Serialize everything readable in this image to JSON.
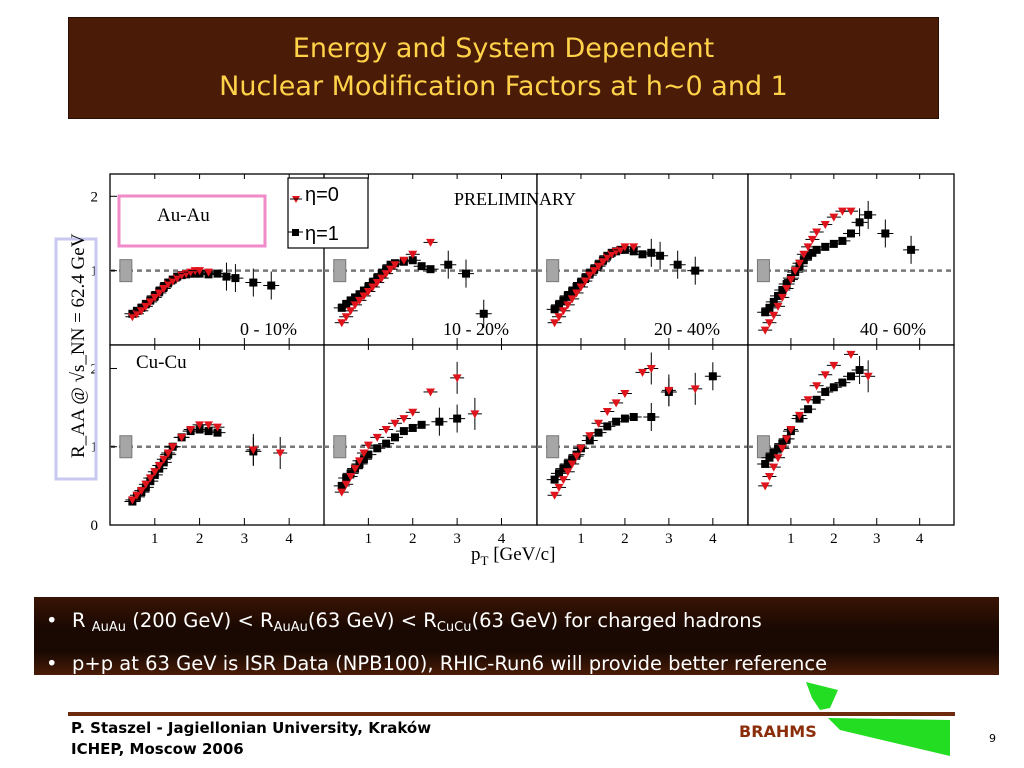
{
  "title": {
    "line1": "Energy and System Dependent",
    "line2": "Nuclear Modification Factors at h~0 and 1"
  },
  "bullets": {
    "b1": {
      "p1": "R ",
      "s1": "AuAu",
      "p2": " (200 GeV) < R",
      "s2": "AuAu",
      "p3": "(63 GeV) <  R",
      "s3": "CuCu",
      "p4": "(63 GeV) for charged hadrons"
    },
    "b2": "p+p at 63 GeV is ISR Data (NPB100), RHIC-Run6 will provide better reference"
  },
  "footer": {
    "author": "P. Staszel - Jagiellonian University, Kraków",
    "conference": "ICHEP, Moscow 2006",
    "logo_text": "BRAHMS",
    "page": "9"
  },
  "colors": {
    "title_bg": "#4a1c07",
    "title_text": "#ffd24a",
    "eta0": "#e0141c",
    "eta1": "#000000",
    "auau_box": "#f08ac8",
    "ylabel_box": "#c8c8f0",
    "logo_green": "#22dd22"
  },
  "chart_data": {
    "type": "scatter",
    "title": "",
    "preliminary": "PRELIMINARY",
    "xlabel": "p",
    "xlabel_sub": "T",
    "xlabel_unit": " [GeV/c]",
    "ylabel": "R_AA @ √s_NN = 62.4 GeV",
    "xlim": [
      0,
      4.8
    ],
    "ylim": [
      0,
      2.3
    ],
    "xticks": [
      1,
      2,
      3,
      4
    ],
    "yticks": [
      0,
      1,
      2
    ],
    "legend": [
      {
        "name": "η=0",
        "marker": "triangle-down",
        "color": "#e0141c"
      },
      {
        "name": "η=1",
        "marker": "square",
        "color": "#000000"
      }
    ],
    "rows": [
      {
        "system": "Au-Au",
        "ylim": [
          0.0,
          2.3
        ]
      },
      {
        "system": "Cu-Cu",
        "ylim": [
          0.0,
          2.3
        ]
      }
    ],
    "panels": [
      {
        "row": 0,
        "centrality": "0 - 10%",
        "eta0": [
          [
            0.5,
            0.38
          ],
          [
            0.6,
            0.42
          ],
          [
            0.7,
            0.46
          ],
          [
            0.8,
            0.52
          ],
          [
            0.9,
            0.58
          ],
          [
            1.0,
            0.64
          ],
          [
            1.1,
            0.7
          ],
          [
            1.2,
            0.76
          ],
          [
            1.3,
            0.82
          ],
          [
            1.4,
            0.86
          ],
          [
            1.5,
            0.9
          ],
          [
            1.6,
            0.94
          ],
          [
            1.7,
            0.96
          ],
          [
            1.8,
            0.98
          ],
          [
            1.9,
            1.0
          ],
          [
            2.0,
            1.0
          ],
          [
            2.2,
            0.98
          ]
        ],
        "eta1": [
          [
            0.5,
            0.42
          ],
          [
            0.6,
            0.46
          ],
          [
            0.7,
            0.5
          ],
          [
            0.8,
            0.55
          ],
          [
            0.9,
            0.6
          ],
          [
            1.0,
            0.66
          ],
          [
            1.1,
            0.72
          ],
          [
            1.2,
            0.78
          ],
          [
            1.3,
            0.84
          ],
          [
            1.4,
            0.88
          ],
          [
            1.5,
            0.92
          ],
          [
            1.6,
            0.94
          ],
          [
            1.7,
            0.95
          ],
          [
            1.8,
            0.96
          ],
          [
            1.9,
            0.96
          ],
          [
            2.0,
            0.96
          ],
          [
            2.2,
            0.95
          ],
          [
            2.4,
            0.96
          ],
          [
            2.6,
            0.92
          ],
          [
            2.8,
            0.9
          ],
          [
            3.2,
            0.84
          ],
          [
            3.6,
            0.8
          ]
        ],
        "note": "no η=0 points beyond 2.2 GeV/c"
      },
      {
        "row": 0,
        "centrality": "10 - 20%",
        "eta0": [
          [
            0.4,
            0.3
          ],
          [
            0.5,
            0.38
          ],
          [
            0.6,
            0.46
          ],
          [
            0.7,
            0.54
          ],
          [
            0.8,
            0.6
          ],
          [
            0.9,
            0.66
          ],
          [
            1.0,
            0.72
          ],
          [
            1.1,
            0.78
          ],
          [
            1.2,
            0.84
          ],
          [
            1.3,
            0.9
          ],
          [
            1.4,
            0.96
          ],
          [
            1.5,
            1.02
          ],
          [
            1.6,
            1.08
          ],
          [
            1.8,
            1.14
          ],
          [
            2.0,
            1.22
          ],
          [
            2.4,
            1.38
          ]
        ],
        "eta1": [
          [
            0.4,
            0.5
          ],
          [
            0.5,
            0.55
          ],
          [
            0.6,
            0.6
          ],
          [
            0.7,
            0.64
          ],
          [
            0.8,
            0.68
          ],
          [
            0.9,
            0.73
          ],
          [
            1.0,
            0.78
          ],
          [
            1.1,
            0.84
          ],
          [
            1.2,
            0.9
          ],
          [
            1.3,
            0.96
          ],
          [
            1.4,
            1.02
          ],
          [
            1.5,
            1.08
          ],
          [
            1.6,
            1.1
          ],
          [
            1.8,
            1.12
          ],
          [
            2.0,
            1.14
          ],
          [
            2.2,
            1.06
          ],
          [
            2.4,
            1.02
          ],
          [
            2.8,
            1.08
          ],
          [
            3.2,
            0.96
          ],
          [
            3.6,
            0.42
          ]
        ]
      },
      {
        "row": 0,
        "centrality": "20 - 40%",
        "eta0": [
          [
            0.4,
            0.3
          ],
          [
            0.5,
            0.38
          ],
          [
            0.6,
            0.46
          ],
          [
            0.7,
            0.54
          ],
          [
            0.8,
            0.62
          ],
          [
            0.9,
            0.7
          ],
          [
            1.0,
            0.78
          ],
          [
            1.1,
            0.86
          ],
          [
            1.2,
            0.94
          ],
          [
            1.3,
            1.0
          ],
          [
            1.4,
            1.06
          ],
          [
            1.5,
            1.12
          ],
          [
            1.6,
            1.18
          ],
          [
            1.7,
            1.22
          ],
          [
            1.8,
            1.26
          ],
          [
            1.9,
            1.28
          ],
          [
            2.0,
            1.32
          ],
          [
            2.2,
            1.32
          ]
        ],
        "eta1": [
          [
            0.4,
            0.48
          ],
          [
            0.5,
            0.54
          ],
          [
            0.6,
            0.6
          ],
          [
            0.7,
            0.66
          ],
          [
            0.8,
            0.72
          ],
          [
            0.9,
            0.78
          ],
          [
            1.0,
            0.84
          ],
          [
            1.1,
            0.9
          ],
          [
            1.2,
            0.96
          ],
          [
            1.3,
            1.02
          ],
          [
            1.4,
            1.08
          ],
          [
            1.5,
            1.14
          ],
          [
            1.6,
            1.2
          ],
          [
            1.7,
            1.24
          ],
          [
            1.8,
            1.26
          ],
          [
            1.9,
            1.28
          ],
          [
            2.0,
            1.28
          ],
          [
            2.2,
            1.26
          ],
          [
            2.4,
            1.22
          ],
          [
            2.6,
            1.24
          ],
          [
            2.8,
            1.2
          ],
          [
            3.2,
            1.08
          ],
          [
            3.6,
            1.0
          ]
        ]
      },
      {
        "row": 0,
        "centrality": "40 - 60%",
        "eta0": [
          [
            0.4,
            0.2
          ],
          [
            0.5,
            0.3
          ],
          [
            0.6,
            0.4
          ],
          [
            0.7,
            0.52
          ],
          [
            0.8,
            0.64
          ],
          [
            0.9,
            0.76
          ],
          [
            1.0,
            0.88
          ],
          [
            1.1,
            1.0
          ],
          [
            1.2,
            1.1
          ],
          [
            1.3,
            1.22
          ],
          [
            1.4,
            1.32
          ],
          [
            1.5,
            1.42
          ],
          [
            1.6,
            1.52
          ],
          [
            1.8,
            1.62
          ],
          [
            2.0,
            1.72
          ],
          [
            2.2,
            1.8
          ],
          [
            2.4,
            1.8
          ]
        ],
        "eta1": [
          [
            0.4,
            0.44
          ],
          [
            0.5,
            0.5
          ],
          [
            0.6,
            0.58
          ],
          [
            0.7,
            0.66
          ],
          [
            0.8,
            0.74
          ],
          [
            0.9,
            0.82
          ],
          [
            1.0,
            0.9
          ],
          [
            1.1,
            0.98
          ],
          [
            1.2,
            1.06
          ],
          [
            1.3,
            1.14
          ],
          [
            1.4,
            1.2
          ],
          [
            1.5,
            1.24
          ],
          [
            1.6,
            1.28
          ],
          [
            1.8,
            1.32
          ],
          [
            2.0,
            1.36
          ],
          [
            2.2,
            1.4
          ],
          [
            2.4,
            1.5
          ],
          [
            2.6,
            1.65
          ],
          [
            2.8,
            1.75
          ],
          [
            3.2,
            1.5
          ],
          [
            3.8,
            1.28
          ]
        ]
      },
      {
        "row": 1,
        "centrality": "",
        "eta0": [
          [
            0.5,
            0.32
          ],
          [
            0.6,
            0.38
          ],
          [
            0.7,
            0.44
          ],
          [
            0.8,
            0.52
          ],
          [
            0.9,
            0.6
          ],
          [
            1.0,
            0.68
          ],
          [
            1.1,
            0.76
          ],
          [
            1.2,
            0.84
          ],
          [
            1.3,
            0.92
          ],
          [
            1.4,
            1.0
          ],
          [
            1.6,
            1.12
          ],
          [
            1.8,
            1.22
          ],
          [
            2.0,
            1.28
          ],
          [
            2.2,
            1.28
          ],
          [
            2.4,
            1.25
          ],
          [
            3.2,
            0.96
          ],
          [
            3.8,
            0.92
          ]
        ],
        "eta1": [
          [
            0.5,
            0.3
          ],
          [
            0.6,
            0.36
          ],
          [
            0.7,
            0.42
          ],
          [
            0.8,
            0.48
          ],
          [
            0.9,
            0.56
          ],
          [
            1.0,
            0.64
          ],
          [
            1.1,
            0.72
          ],
          [
            1.2,
            0.8
          ],
          [
            1.3,
            0.9
          ],
          [
            1.4,
            1.0
          ],
          [
            1.6,
            1.12
          ],
          [
            1.8,
            1.2
          ],
          [
            2.0,
            1.22
          ],
          [
            2.2,
            1.2
          ],
          [
            2.4,
            1.18
          ],
          [
            3.2,
            0.94
          ]
        ]
      },
      {
        "row": 1,
        "centrality": "",
        "eta0": [
          [
            0.4,
            0.42
          ],
          [
            0.5,
            0.52
          ],
          [
            0.6,
            0.62
          ],
          [
            0.7,
            0.72
          ],
          [
            0.8,
            0.82
          ],
          [
            0.9,
            0.92
          ],
          [
            1.0,
            1.02
          ],
          [
            1.2,
            1.12
          ],
          [
            1.4,
            1.22
          ],
          [
            1.6,
            1.3
          ],
          [
            1.8,
            1.36
          ],
          [
            2.0,
            1.44
          ],
          [
            2.4,
            1.7
          ],
          [
            3.0,
            1.88
          ],
          [
            3.4,
            1.42
          ]
        ],
        "eta1": [
          [
            0.4,
            0.5
          ],
          [
            0.5,
            0.6
          ],
          [
            0.6,
            0.66
          ],
          [
            0.7,
            0.72
          ],
          [
            0.8,
            0.78
          ],
          [
            0.9,
            0.84
          ],
          [
            1.0,
            0.9
          ],
          [
            1.2,
            0.98
          ],
          [
            1.4,
            1.04
          ],
          [
            1.6,
            1.12
          ],
          [
            1.8,
            1.2
          ],
          [
            2.0,
            1.24
          ],
          [
            2.2,
            1.28
          ],
          [
            2.6,
            1.32
          ],
          [
            3.0,
            1.36
          ]
        ]
      },
      {
        "row": 1,
        "centrality": "",
        "eta0": [
          [
            0.4,
            0.38
          ],
          [
            0.5,
            0.48
          ],
          [
            0.6,
            0.58
          ],
          [
            0.7,
            0.68
          ],
          [
            0.8,
            0.78
          ],
          [
            0.9,
            0.88
          ],
          [
            1.0,
            0.98
          ],
          [
            1.2,
            1.14
          ],
          [
            1.4,
            1.3
          ],
          [
            1.6,
            1.45
          ],
          [
            1.8,
            1.56
          ],
          [
            2.0,
            1.68
          ],
          [
            2.4,
            1.95
          ],
          [
            2.6,
            2.0
          ],
          [
            3.0,
            1.72
          ],
          [
            3.6,
            1.74
          ]
        ],
        "eta1": [
          [
            0.4,
            0.58
          ],
          [
            0.5,
            0.66
          ],
          [
            0.6,
            0.72
          ],
          [
            0.7,
            0.78
          ],
          [
            0.8,
            0.84
          ],
          [
            0.9,
            0.9
          ],
          [
            1.0,
            0.98
          ],
          [
            1.2,
            1.08
          ],
          [
            1.4,
            1.18
          ],
          [
            1.6,
            1.26
          ],
          [
            1.8,
            1.32
          ],
          [
            2.0,
            1.36
          ],
          [
            2.2,
            1.38
          ],
          [
            2.6,
            1.38
          ],
          [
            3.0,
            1.7
          ],
          [
            4.0,
            1.9
          ]
        ]
      },
      {
        "row": 1,
        "centrality": "",
        "eta0": [
          [
            0.4,
            0.5
          ],
          [
            0.5,
            0.62
          ],
          [
            0.6,
            0.74
          ],
          [
            0.7,
            0.86
          ],
          [
            0.8,
            0.98
          ],
          [
            0.9,
            1.1
          ],
          [
            1.0,
            1.22
          ],
          [
            1.2,
            1.4
          ],
          [
            1.4,
            1.6
          ],
          [
            1.6,
            1.78
          ],
          [
            1.8,
            1.92
          ],
          [
            2.0,
            2.04
          ],
          [
            2.4,
            2.18
          ],
          [
            2.6,
            2.32
          ],
          [
            2.8,
            1.9
          ]
        ],
        "eta1": [
          [
            0.4,
            0.78
          ],
          [
            0.5,
            0.86
          ],
          [
            0.6,
            0.92
          ],
          [
            0.7,
            0.98
          ],
          [
            0.8,
            1.04
          ],
          [
            0.9,
            1.1
          ],
          [
            1.0,
            1.2
          ],
          [
            1.2,
            1.36
          ],
          [
            1.4,
            1.48
          ],
          [
            1.6,
            1.6
          ],
          [
            1.8,
            1.7
          ],
          [
            2.0,
            1.76
          ],
          [
            2.2,
            1.82
          ],
          [
            2.4,
            1.9
          ],
          [
            2.6,
            1.98
          ]
        ]
      }
    ]
  }
}
